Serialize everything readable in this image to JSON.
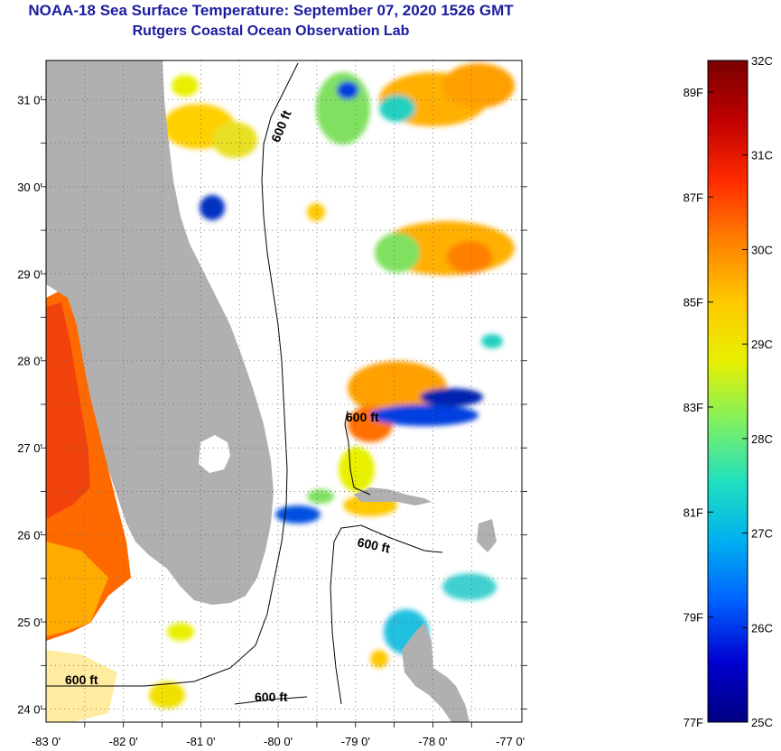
{
  "title": "NOAA-18 Sea Surface Temperature:  September 07, 2020 1526 GMT",
  "subtitle": "Rutgers Coastal Ocean Observation Lab",
  "map": {
    "lat_ticks": [
      {
        "value": 31,
        "label": "31 0'"
      },
      {
        "value": 30,
        "label": "30 0'"
      },
      {
        "value": 29,
        "label": "29 0'"
      },
      {
        "value": 28,
        "label": "28 0'"
      },
      {
        "value": 27,
        "label": "27 0'"
      },
      {
        "value": 26,
        "label": "26 0'"
      },
      {
        "value": 25,
        "label": "25 0'"
      },
      {
        "value": 24,
        "label": "24 0'"
      }
    ],
    "lon_ticks": [
      {
        "value": -83,
        "label": "-83 0'"
      },
      {
        "value": -82,
        "label": "-82 0'"
      },
      {
        "value": -81,
        "label": "-81 0'"
      },
      {
        "value": -80,
        "label": "-80 0'"
      },
      {
        "value": -79,
        "label": "-79 0'"
      },
      {
        "value": -78,
        "label": "-78 0'"
      },
      {
        "value": -77,
        "label": "-77 0'"
      }
    ],
    "contour_labels": [
      "600 ft",
      "600 ft",
      "600 ft",
      "600 ft"
    ],
    "colors": {
      "land": "#b0b0b0",
      "water": "#ffffff",
      "grid": "#555555",
      "frame": "#000000"
    }
  },
  "colorbar": {
    "celsius": [
      {
        "value": 32,
        "label": "32C"
      },
      {
        "value": 31,
        "label": "31C"
      },
      {
        "value": 30,
        "label": "30C"
      },
      {
        "value": 29,
        "label": "29C"
      },
      {
        "value": 28,
        "label": "28C"
      },
      {
        "value": 27,
        "label": "27C"
      },
      {
        "value": 26,
        "label": "26C"
      },
      {
        "value": 25,
        "label": "25C"
      }
    ],
    "fahrenheit": [
      {
        "value": 89,
        "label": "89F"
      },
      {
        "value": 87,
        "label": "87F"
      },
      {
        "value": 85,
        "label": "85F"
      },
      {
        "value": 83,
        "label": "83F"
      },
      {
        "value": 81,
        "label": "81F"
      },
      {
        "value": 79,
        "label": "79F"
      },
      {
        "value": 77,
        "label": "77F"
      }
    ],
    "palette": [
      "#7a0000",
      "#c00000",
      "#ff2a00",
      "#ff8000",
      "#ffc800",
      "#e8f000",
      "#80f060",
      "#20e0c0",
      "#00b0f0",
      "#0060ff",
      "#0000d0",
      "#000080"
    ]
  }
}
